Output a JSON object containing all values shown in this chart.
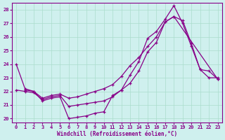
{
  "xlabel": "Windchill (Refroidissement éolien,°C)",
  "bg_color": "#cff0ee",
  "line_color": "#880088",
  "grid_color": "#aaddcc",
  "xlim": [
    -0.5,
    23.5
  ],
  "ylim": [
    19.7,
    28.5
  ],
  "yticks": [
    20,
    21,
    22,
    23,
    24,
    25,
    26,
    27,
    28
  ],
  "xticks": [
    0,
    1,
    2,
    3,
    4,
    5,
    6,
    7,
    8,
    9,
    10,
    11,
    12,
    13,
    14,
    15,
    16,
    17,
    18,
    19,
    20,
    21,
    22,
    23
  ],
  "series1_x": [
    0,
    1,
    2,
    3,
    4,
    5,
    6,
    7,
    8,
    9,
    10,
    11,
    12,
    13,
    14,
    15,
    16,
    17,
    18,
    19,
    20,
    21,
    22,
    23
  ],
  "series1_y": [
    24.0,
    22.2,
    22.0,
    21.3,
    21.5,
    21.6,
    20.0,
    20.1,
    20.2,
    20.4,
    20.5,
    21.7,
    22.1,
    23.2,
    24.2,
    25.9,
    26.4,
    27.3,
    28.3,
    27.0,
    25.3,
    23.6,
    23.5,
    22.9
  ],
  "series2_x": [
    0,
    1,
    2,
    3,
    4,
    5,
    6,
    7,
    8,
    9,
    10,
    11,
    12,
    13,
    14,
    15,
    16,
    17,
    18,
    19,
    20,
    21,
    22,
    23
  ],
  "series2_y": [
    22.1,
    22.0,
    21.9,
    21.4,
    21.6,
    21.7,
    20.9,
    21.0,
    21.1,
    21.2,
    21.3,
    21.6,
    22.1,
    22.6,
    23.5,
    24.9,
    25.6,
    27.1,
    27.5,
    27.2,
    25.5,
    23.6,
    23.0,
    23.0
  ],
  "series3_x": [
    1,
    2,
    3,
    4,
    5,
    6,
    7,
    8,
    9,
    10,
    11,
    12,
    13,
    14,
    15,
    16,
    17,
    18,
    23
  ],
  "series3_y": [
    22.1,
    22.0,
    21.5,
    21.7,
    21.8,
    21.5,
    21.6,
    21.8,
    22.0,
    22.2,
    22.5,
    23.1,
    23.9,
    24.5,
    25.3,
    26.0,
    27.1,
    27.5,
    22.9
  ]
}
